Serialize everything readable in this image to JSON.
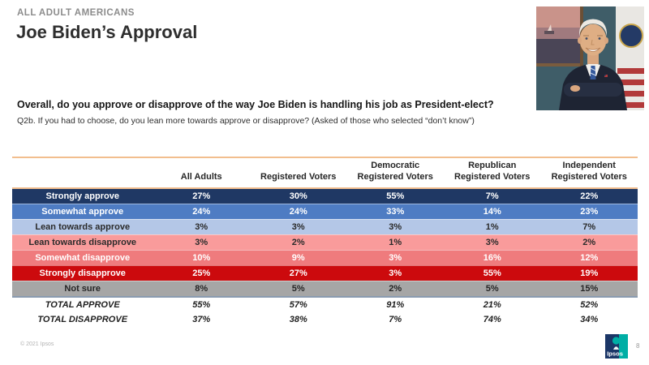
{
  "slide": {
    "kicker": "ALL ADULT AMERICANS",
    "title": "Joe Biden’s Approval"
  },
  "question": {
    "main": "Overall, do you approve or disapprove of the way Joe Biden is handling his job as President-elect?",
    "sub": "Q2b. If you had to choose, do you lean more towards approve or disapprove? (Asked of those who selected “don’t know”)"
  },
  "table": {
    "columns": [
      "",
      "All Adults",
      "Registered Voters",
      "Democratic Registered Voters",
      "Republican Registered Voters",
      "Independent Registered Voters"
    ],
    "rows": [
      {
        "label": "Strongly approve",
        "values": [
          "27%",
          "30%",
          "55%",
          "7%",
          "22%"
        ],
        "bg": "#1F3864",
        "fg": "#FFFFFF"
      },
      {
        "label": "Somewhat approve",
        "values": [
          "24%",
          "24%",
          "33%",
          "14%",
          "23%"
        ],
        "bg": "#4E7CC3",
        "fg": "#FFFFFF"
      },
      {
        "label": "Lean towards approve",
        "values": [
          "3%",
          "3%",
          "3%",
          "1%",
          "7%"
        ],
        "bg": "#B4C7E7",
        "fg": "#2B2B2B"
      },
      {
        "label": "Lean towards disapprove",
        "values": [
          "3%",
          "2%",
          "1%",
          "3%",
          "2%"
        ],
        "bg": "#F99B9B",
        "fg": "#2B2B2B"
      },
      {
        "label": "Somewhat disapprove",
        "values": [
          "10%",
          "9%",
          "3%",
          "16%",
          "12%"
        ],
        "bg": "#EF7B7D",
        "fg": "#FFFFFF"
      },
      {
        "label": "Strongly disapprove",
        "values": [
          "25%",
          "27%",
          "3%",
          "55%",
          "19%"
        ],
        "bg": "#CC0A0D",
        "fg": "#FFFFFF"
      },
      {
        "label": "Not sure",
        "values": [
          "8%",
          "5%",
          "2%",
          "5%",
          "15%"
        ],
        "bg": "#A6A6A6",
        "fg": "#262626",
        "divider_bottom": "#8A9BB0"
      },
      {
        "label": "TOTAL APPROVE",
        "values": [
          "55%",
          "57%",
          "91%",
          "21%",
          "52%"
        ],
        "variant": "total"
      },
      {
        "label": "TOTAL DISAPPROVE",
        "values": [
          "37%",
          "38%",
          "7%",
          "74%",
          "34%"
        ],
        "variant": "total"
      }
    ]
  },
  "footer": {
    "copyright": "© 2021 Ipsos",
    "page_number": "8",
    "logo_text": "Ipsos"
  },
  "colors": {
    "accent_line": "#F2BE8E",
    "strongly_approve": "#1F3864",
    "somewhat_approve": "#4E7CC3",
    "lean_approve": "#B4C7E7",
    "lean_disapprove": "#F99B9B",
    "somewhat_disapprove": "#EF7B7D",
    "strongly_disapprove": "#CC0A0D",
    "not_sure": "#A6A6A6",
    "kicker_gray": "#8C8C8C",
    "logo_navy": "#1B3667",
    "logo_teal": "#00AEA5"
  }
}
